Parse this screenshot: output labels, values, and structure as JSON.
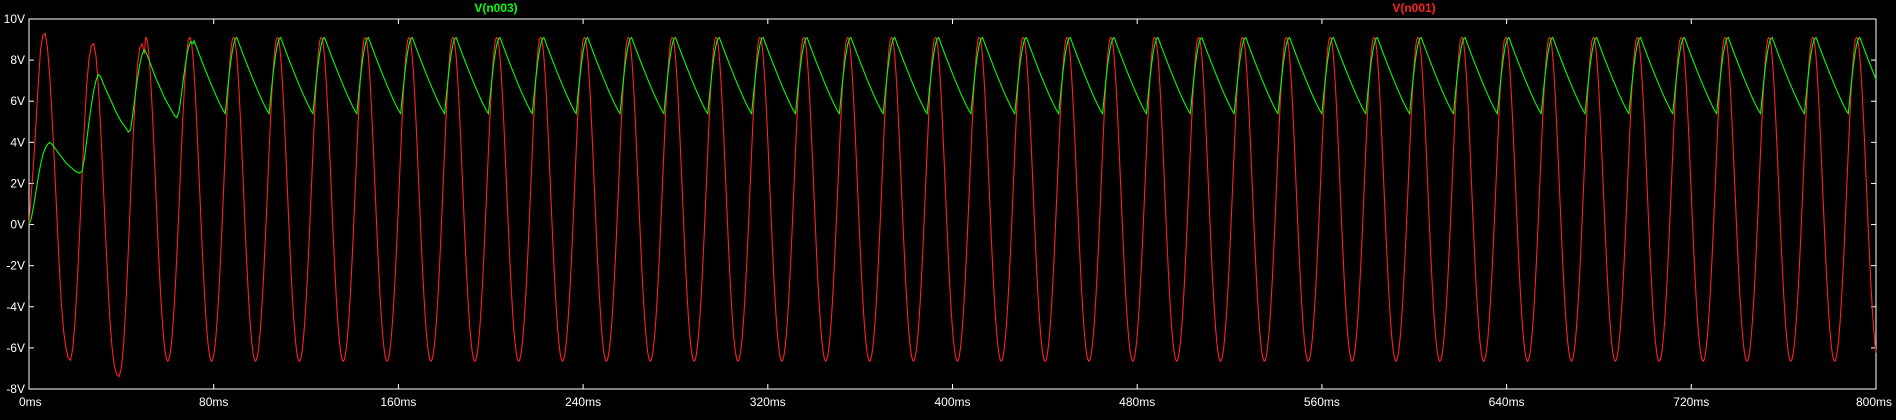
{
  "chart_data": {
    "type": "line",
    "title": "",
    "xlabel": "",
    "ylabel": "",
    "xlim": [
      0,
      800
    ],
    "ylim": [
      -8,
      10
    ],
    "x_unit": "ms",
    "y_unit": "V",
    "x_ticks": [
      "0ms",
      "80ms",
      "160ms",
      "240ms",
      "320ms",
      "400ms",
      "480ms",
      "560ms",
      "640ms",
      "720ms",
      "800ms"
    ],
    "y_ticks": [
      "10V",
      "8V",
      "6V",
      "4V",
      "2V",
      "0V",
      "-2V",
      "-4V",
      "-6V",
      "-8V"
    ],
    "grid": false,
    "background": "#000000",
    "axis_color": "#ffffff",
    "series": [
      {
        "name": "V(n003)",
        "color": "#00ff00",
        "points": [
          [
            0,
            0.0
          ],
          [
            1,
            0.3
          ],
          [
            2,
            0.9
          ],
          [
            3,
            1.6
          ],
          [
            4,
            2.3
          ],
          [
            5,
            2.9
          ],
          [
            6,
            3.4
          ],
          [
            7,
            3.7
          ],
          [
            8,
            3.9
          ],
          [
            9,
            4.0
          ],
          [
            10,
            3.9
          ],
          [
            12,
            3.6
          ],
          [
            14,
            3.3
          ],
          [
            16,
            3.0
          ],
          [
            18,
            2.8
          ],
          [
            20,
            2.6
          ],
          [
            22,
            2.5
          ],
          [
            23,
            2.6
          ],
          [
            24,
            3.2
          ],
          [
            25,
            4.1
          ],
          [
            26,
            5.0
          ],
          [
            27,
            5.8
          ],
          [
            28,
            6.5
          ],
          [
            29,
            7.0
          ],
          [
            30,
            7.3
          ],
          [
            31,
            7.2
          ],
          [
            32,
            6.9
          ],
          [
            34,
            6.4
          ],
          [
            36,
            5.9
          ],
          [
            38,
            5.4
          ],
          [
            40,
            5.0
          ],
          [
            42,
            4.7
          ],
          [
            43,
            4.5
          ],
          [
            44,
            4.6
          ],
          [
            45,
            5.4
          ],
          [
            46,
            6.3
          ],
          [
            47,
            7.1
          ],
          [
            48,
            7.8
          ],
          [
            49,
            8.3
          ],
          [
            50,
            8.5
          ],
          [
            51,
            8.3
          ],
          [
            53,
            7.7
          ],
          [
            55,
            7.1
          ],
          [
            57,
            6.6
          ],
          [
            59,
            6.1
          ],
          [
            61,
            5.7
          ],
          [
            63,
            5.3
          ],
          [
            64,
            5.2
          ],
          [
            65,
            5.5
          ],
          [
            66,
            6.3
          ],
          [
            67,
            7.2
          ],
          [
            68,
            8.0
          ],
          [
            69,
            8.6
          ],
          [
            70,
            8.9
          ],
          [
            71,
            8.8
          ],
          [
            73,
            8.2
          ],
          [
            75,
            7.5
          ],
          [
            77,
            6.9
          ],
          [
            79,
            6.3
          ],
          [
            81,
            5.8
          ],
          [
            83,
            5.5
          ],
          [
            84,
            5.4
          ],
          [
            85,
            6.0
          ],
          [
            86,
            6.8
          ],
          [
            87,
            7.7
          ],
          [
            88,
            8.4
          ],
          [
            89,
            8.9
          ],
          [
            90,
            9.1
          ],
          [
            92,
            8.6
          ],
          [
            94,
            7.9
          ],
          [
            96,
            7.2
          ],
          [
            98,
            6.6
          ],
          [
            100,
            6.0
          ],
          [
            102,
            5.6
          ],
          [
            103,
            5.4
          ],
          [
            104,
            5.6
          ],
          [
            105,
            6.4
          ],
          [
            106,
            7.3
          ],
          [
            107,
            8.2
          ],
          [
            108,
            8.8
          ],
          [
            109,
            9.1
          ],
          [
            111,
            8.7
          ],
          [
            113,
            8.0
          ],
          [
            115,
            7.3
          ],
          [
            117,
            6.7
          ],
          [
            119,
            6.1
          ],
          [
            121,
            5.6
          ],
          [
            123,
            5.4
          ],
          [
            124,
            5.7
          ],
          [
            125,
            6.6
          ],
          [
            126,
            7.5
          ],
          [
            127,
            8.4
          ],
          [
            128,
            8.9
          ],
          [
            129,
            9.1
          ],
          [
            131,
            8.7
          ],
          [
            133,
            8.0
          ],
          [
            135,
            7.3
          ],
          [
            137,
            6.7
          ],
          [
            139,
            6.1
          ],
          [
            141,
            5.6
          ],
          [
            143,
            5.4
          ],
          [
            800,
            5.4
          ]
        ],
        "periodic": {
          "note_hidden": true
        }
      },
      {
        "name": "V(n001)",
        "color": "#ff2020",
        "points": [
          [
            0,
            0.0
          ],
          [
            2,
            3.0
          ],
          [
            4,
            6.8
          ],
          [
            5,
            8.5
          ],
          [
            6,
            9.2
          ],
          [
            7,
            9.3
          ],
          [
            8,
            8.6
          ],
          [
            9,
            7.2
          ],
          [
            10,
            5.2
          ],
          [
            11,
            3.0
          ],
          [
            12,
            0.6
          ],
          [
            13,
            -1.8
          ],
          [
            14,
            -3.8
          ],
          [
            15,
            -5.2
          ],
          [
            16,
            -6.0
          ],
          [
            17,
            -6.5
          ],
          [
            18,
            -6.6
          ],
          [
            19,
            -6.0
          ],
          [
            20,
            -4.6
          ],
          [
            21,
            -2.6
          ],
          [
            22,
            -0.2
          ],
          [
            23,
            2.3
          ],
          [
            24,
            4.8
          ],
          [
            25,
            6.8
          ],
          [
            26,
            8.1
          ],
          [
            27,
            8.7
          ],
          [
            28,
            8.8
          ],
          [
            29,
            8.2
          ],
          [
            30,
            6.8
          ],
          [
            31,
            4.8
          ],
          [
            32,
            2.4
          ],
          [
            33,
            -0.1
          ],
          [
            34,
            -2.5
          ],
          [
            35,
            -4.6
          ],
          [
            36,
            -6.0
          ],
          [
            37,
            -6.9
          ],
          [
            38,
            -7.3
          ],
          [
            39,
            -7.4
          ],
          [
            40,
            -7.0
          ],
          [
            41,
            -5.8
          ],
          [
            42,
            -3.8
          ],
          [
            43,
            -1.3
          ],
          [
            44,
            1.4
          ],
          [
            45,
            4.0
          ],
          [
            46,
            6.2
          ],
          [
            47,
            7.8
          ],
          [
            48,
            8.6
          ],
          [
            49,
            8.8
          ],
          [
            50,
            8.3
          ]
        ]
      }
    ]
  }
}
